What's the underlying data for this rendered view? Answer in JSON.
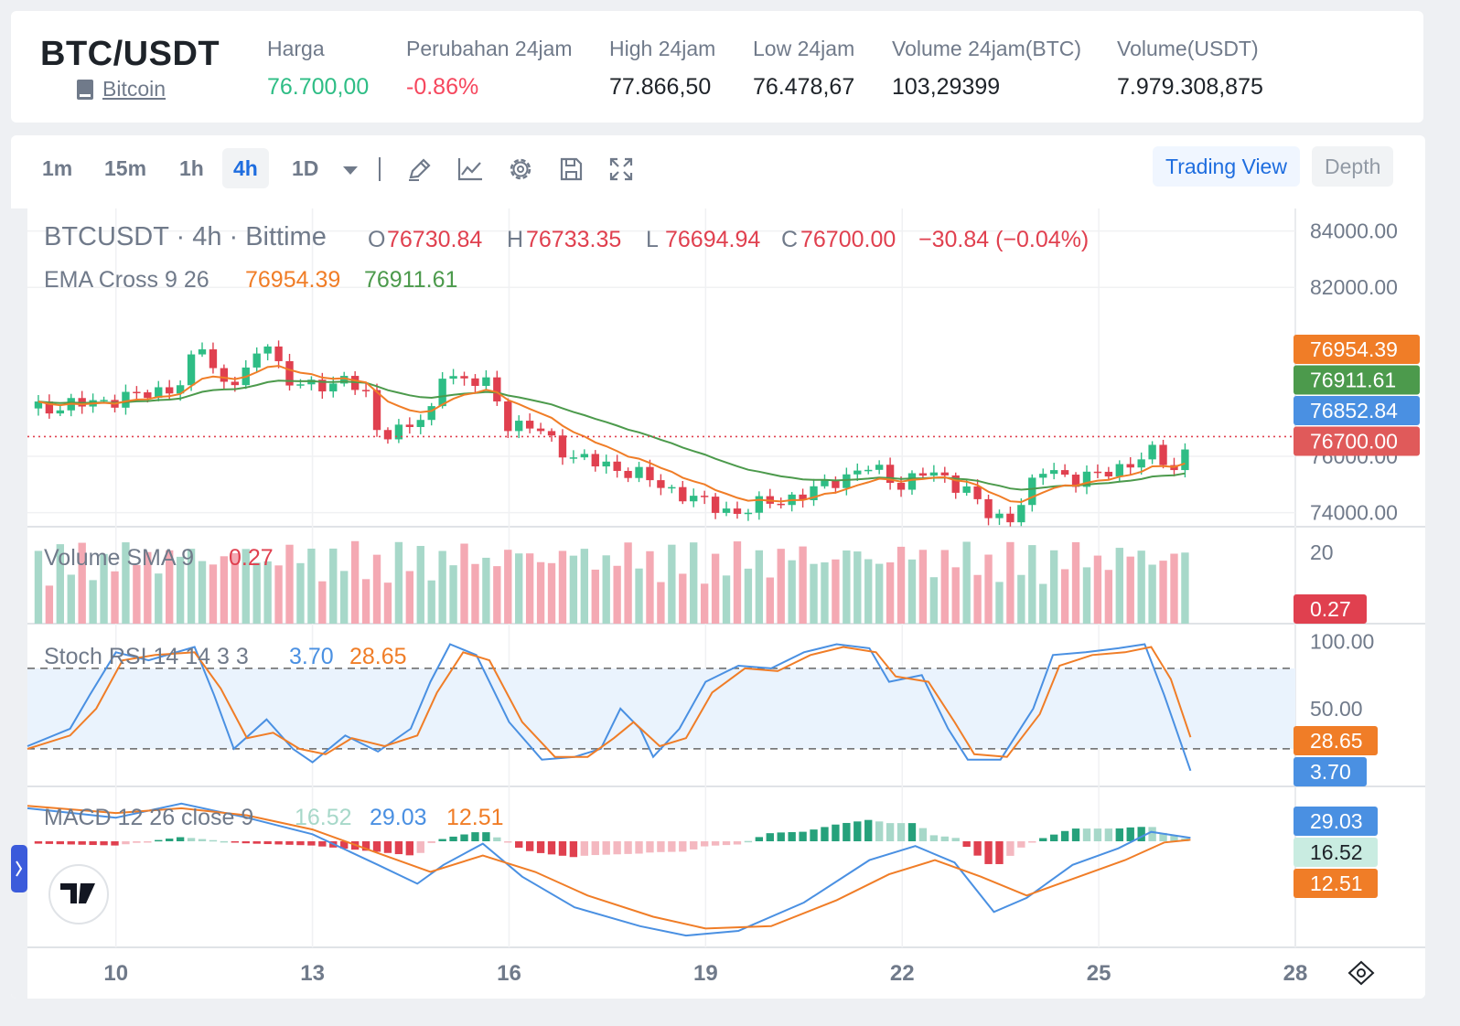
{
  "header": {
    "pair": "BTC/USDT",
    "coin_link": "Bitcoin",
    "stats": [
      {
        "label": "Harga",
        "value": "76.700,00",
        "tone": "green"
      },
      {
        "label": "Perubahan 24jam",
        "value": "-0.86%",
        "tone": "red"
      },
      {
        "label": "High 24jam",
        "value": "77.866,50",
        "tone": "normal"
      },
      {
        "label": "Low 24jam",
        "value": "76.478,67",
        "tone": "normal"
      },
      {
        "label": "Volume 24jam(BTC)",
        "value": "103,29399",
        "tone": "normal"
      },
      {
        "label": "Volume(USDT)",
        "value": "7.979.308,875",
        "tone": "normal"
      }
    ]
  },
  "toolbar": {
    "timeframes": [
      "1m",
      "15m",
      "1h",
      "4h",
      "1D"
    ],
    "active_timeframe": "4h",
    "views": [
      "Trading View",
      "Depth"
    ],
    "active_view": "Trading View"
  },
  "chart_data": {
    "type": "candlestick",
    "title": "BTCUSDT · 4h · Bittime",
    "ohlc": {
      "o_label": "O",
      "o": "76730.84",
      "h_label": "H",
      "h": "76733.35",
      "l_label": "L",
      "l": "76694.94",
      "c_label": "C",
      "c": "76700.00",
      "change": "−30.84 (−0.04%)"
    },
    "x_ticks": [
      "10",
      "13",
      "16",
      "19",
      "22",
      "25",
      "28"
    ],
    "x_tick_days": [
      10,
      13,
      16,
      19,
      22,
      25,
      28
    ],
    "x_range_days": [
      8.65,
      28.0
    ],
    "y_ticks": [
      "84000.00",
      "82000.00",
      "76000.00",
      "74000.00"
    ],
    "y_range": [
      73500,
      84800
    ],
    "last_price": 76700,
    "close_path": [
      {
        "day": 8.65,
        "close": 77700
      },
      {
        "day": 9.0,
        "close": 77750
      },
      {
        "day": 9.5,
        "close": 77850
      },
      {
        "day": 10.0,
        "close": 78050
      },
      {
        "day": 10.5,
        "close": 78200
      },
      {
        "day": 11.0,
        "close": 78600
      },
      {
        "day": 11.3,
        "close": 80000
      },
      {
        "day": 11.6,
        "close": 78600
      },
      {
        "day": 12.0,
        "close": 78900
      },
      {
        "day": 12.3,
        "close": 80200
      },
      {
        "day": 12.6,
        "close": 78700
      },
      {
        "day": 13.0,
        "close": 78400
      },
      {
        "day": 13.5,
        "close": 78800
      },
      {
        "day": 13.8,
        "close": 78200
      },
      {
        "day": 14.0,
        "close": 76800
      },
      {
        "day": 14.5,
        "close": 77100
      },
      {
        "day": 14.8,
        "close": 77400
      },
      {
        "day": 15.0,
        "close": 79200
      },
      {
        "day": 15.3,
        "close": 78600
      },
      {
        "day": 15.7,
        "close": 78600
      },
      {
        "day": 16.0,
        "close": 77100
      },
      {
        "day": 16.5,
        "close": 76900
      },
      {
        "day": 17.0,
        "close": 75900
      },
      {
        "day": 17.5,
        "close": 75700
      },
      {
        "day": 18.0,
        "close": 75300
      },
      {
        "day": 18.5,
        "close": 74800
      },
      {
        "day": 19.0,
        "close": 74300
      },
      {
        "day": 19.5,
        "close": 74000
      },
      {
        "day": 20.0,
        "close": 74400
      },
      {
        "day": 20.5,
        "close": 74600
      },
      {
        "day": 21.0,
        "close": 75200
      },
      {
        "day": 21.5,
        "close": 75600
      },
      {
        "day": 22.0,
        "close": 75000
      },
      {
        "day": 22.3,
        "close": 75400
      },
      {
        "day": 22.7,
        "close": 75200
      },
      {
        "day": 23.0,
        "close": 74800
      },
      {
        "day": 23.3,
        "close": 73900
      },
      {
        "day": 23.6,
        "close": 73700
      },
      {
        "day": 23.9,
        "close": 74700
      },
      {
        "day": 24.2,
        "close": 75600
      },
      {
        "day": 24.6,
        "close": 75200
      },
      {
        "day": 25.0,
        "close": 75300
      },
      {
        "day": 25.4,
        "close": 75700
      },
      {
        "day": 25.8,
        "close": 76100
      },
      {
        "day": 26.2,
        "close": 75500
      },
      {
        "day": 26.4,
        "close": 76700
      }
    ],
    "ema": {
      "label": "EMA Cross 9 26",
      "fast_value": "76954.39",
      "slow_value": "76911.61",
      "fast_color": "#f07d27",
      "slow_color": "#4c9a4c"
    },
    "price_tags": [
      {
        "value": "76954.39",
        "price": 76954.39,
        "color": "#f07d27"
      },
      {
        "value": "76911.61",
        "price": 76911.61,
        "color": "#4c9a4c"
      },
      {
        "value": "76852.84",
        "price": 76852.84,
        "color": "#4a90e2"
      },
      {
        "value": "76700.00",
        "price": 76700.0,
        "color": "#e05a5a"
      }
    ],
    "volume": {
      "label": "Volume SMA 9",
      "value": "0.27",
      "axis_tick": "20",
      "axis_range": [
        0,
        24
      ],
      "up_color": "#a7d8c9",
      "down_color": "#f4a9b3"
    },
    "stoch_rsi": {
      "label": "Stoch RSI 14 14 3 3",
      "k_value": "3.70",
      "d_value": "28.65",
      "y_ticks": [
        "100.00",
        "50.00"
      ],
      "y_range": [
        -8,
        112
      ],
      "band": [
        20,
        80
      ],
      "k_points": [
        {
          "day": 8.65,
          "v": 22
        },
        {
          "day": 9.3,
          "v": 35
        },
        {
          "day": 9.6,
          "v": 60
        },
        {
          "day": 10.0,
          "v": 92
        },
        {
          "day": 10.5,
          "v": 86
        },
        {
          "day": 11.2,
          "v": 96
        },
        {
          "day": 11.5,
          "v": 60
        },
        {
          "day": 11.8,
          "v": 20
        },
        {
          "day": 12.3,
          "v": 42
        },
        {
          "day": 12.7,
          "v": 20
        },
        {
          "day": 13.0,
          "v": 10
        },
        {
          "day": 13.5,
          "v": 30
        },
        {
          "day": 14.0,
          "v": 18
        },
        {
          "day": 14.5,
          "v": 35
        },
        {
          "day": 14.8,
          "v": 70
        },
        {
          "day": 15.1,
          "v": 98
        },
        {
          "day": 15.5,
          "v": 90
        },
        {
          "day": 16.0,
          "v": 40
        },
        {
          "day": 16.5,
          "v": 12
        },
        {
          "day": 17.0,
          "v": 14
        },
        {
          "day": 17.4,
          "v": 20
        },
        {
          "day": 17.7,
          "v": 50
        },
        {
          "day": 18.0,
          "v": 35
        },
        {
          "day": 18.2,
          "v": 14
        },
        {
          "day": 18.6,
          "v": 35
        },
        {
          "day": 19.0,
          "v": 70
        },
        {
          "day": 19.5,
          "v": 82
        },
        {
          "day": 20.0,
          "v": 80
        },
        {
          "day": 20.5,
          "v": 92
        },
        {
          "day": 21.0,
          "v": 98
        },
        {
          "day": 21.5,
          "v": 95
        },
        {
          "day": 21.8,
          "v": 70
        },
        {
          "day": 22.3,
          "v": 75
        },
        {
          "day": 22.7,
          "v": 35
        },
        {
          "day": 23.0,
          "v": 12
        },
        {
          "day": 23.5,
          "v": 12
        },
        {
          "day": 24.0,
          "v": 50
        },
        {
          "day": 24.3,
          "v": 90
        },
        {
          "day": 24.8,
          "v": 92
        },
        {
          "day": 25.3,
          "v": 95
        },
        {
          "day": 25.7,
          "v": 98
        },
        {
          "day": 26.0,
          "v": 60
        },
        {
          "day": 26.4,
          "v": 3.7
        }
      ],
      "d_points": [
        {
          "day": 8.65,
          "v": 20
        },
        {
          "day": 9.3,
          "v": 30
        },
        {
          "day": 9.7,
          "v": 50
        },
        {
          "day": 10.1,
          "v": 86
        },
        {
          "day": 10.6,
          "v": 90
        },
        {
          "day": 11.2,
          "v": 92
        },
        {
          "day": 11.6,
          "v": 65
        },
        {
          "day": 12.0,
          "v": 28
        },
        {
          "day": 12.4,
          "v": 32
        },
        {
          "day": 12.8,
          "v": 20
        },
        {
          "day": 13.2,
          "v": 16
        },
        {
          "day": 13.6,
          "v": 28
        },
        {
          "day": 14.1,
          "v": 22
        },
        {
          "day": 14.6,
          "v": 30
        },
        {
          "day": 14.9,
          "v": 62
        },
        {
          "day": 15.3,
          "v": 92
        },
        {
          "day": 15.7,
          "v": 86
        },
        {
          "day": 16.2,
          "v": 40
        },
        {
          "day": 16.7,
          "v": 14
        },
        {
          "day": 17.2,
          "v": 14
        },
        {
          "day": 17.6,
          "v": 28
        },
        {
          "day": 17.9,
          "v": 40
        },
        {
          "day": 18.3,
          "v": 22
        },
        {
          "day": 18.7,
          "v": 28
        },
        {
          "day": 19.1,
          "v": 62
        },
        {
          "day": 19.6,
          "v": 80
        },
        {
          "day": 20.1,
          "v": 78
        },
        {
          "day": 20.6,
          "v": 90
        },
        {
          "day": 21.1,
          "v": 96
        },
        {
          "day": 21.6,
          "v": 92
        },
        {
          "day": 21.9,
          "v": 74
        },
        {
          "day": 22.4,
          "v": 70
        },
        {
          "day": 22.8,
          "v": 40
        },
        {
          "day": 23.1,
          "v": 16
        },
        {
          "day": 23.6,
          "v": 14
        },
        {
          "day": 24.1,
          "v": 46
        },
        {
          "day": 24.4,
          "v": 82
        },
        {
          "day": 24.9,
          "v": 90
        },
        {
          "day": 25.4,
          "v": 92
        },
        {
          "day": 25.8,
          "v": 96
        },
        {
          "day": 26.1,
          "v": 72
        },
        {
          "day": 26.4,
          "v": 28.65
        }
      ]
    },
    "macd": {
      "label": "MACD 12 26 close 9",
      "hist_value": "16.52",
      "macd_value": "29.03",
      "signal_value": "12.51",
      "y_range": [
        -900,
        450
      ],
      "macd_points": [
        {
          "day": 8.65,
          "v": 280
        },
        {
          "day": 10.0,
          "v": 200
        },
        {
          "day": 11.0,
          "v": 320
        },
        {
          "day": 12.0,
          "v": 200
        },
        {
          "day": 13.0,
          "v": 60
        },
        {
          "day": 14.0,
          "v": -200
        },
        {
          "day": 14.6,
          "v": -360
        },
        {
          "day": 15.0,
          "v": -200
        },
        {
          "day": 15.6,
          "v": -20
        },
        {
          "day": 16.2,
          "v": -300
        },
        {
          "day": 17.0,
          "v": -560
        },
        {
          "day": 18.0,
          "v": -720
        },
        {
          "day": 18.7,
          "v": -800
        },
        {
          "day": 19.5,
          "v": -760
        },
        {
          "day": 20.5,
          "v": -520
        },
        {
          "day": 21.5,
          "v": -160
        },
        {
          "day": 22.2,
          "v": -40
        },
        {
          "day": 22.8,
          "v": -180
        },
        {
          "day": 23.4,
          "v": -600
        },
        {
          "day": 23.9,
          "v": -480
        },
        {
          "day": 24.6,
          "v": -200
        },
        {
          "day": 25.3,
          "v": -60
        },
        {
          "day": 25.8,
          "v": 80
        },
        {
          "day": 26.4,
          "v": 29
        }
      ],
      "signal_points": [
        {
          "day": 8.65,
          "v": 300
        },
        {
          "day": 10.0,
          "v": 240
        },
        {
          "day": 11.0,
          "v": 280
        },
        {
          "day": 12.0,
          "v": 220
        },
        {
          "day": 13.0,
          "v": 100
        },
        {
          "day": 14.0,
          "v": -100
        },
        {
          "day": 14.8,
          "v": -260
        },
        {
          "day": 15.6,
          "v": -120
        },
        {
          "day": 16.4,
          "v": -260
        },
        {
          "day": 17.2,
          "v": -460
        },
        {
          "day": 18.2,
          "v": -640
        },
        {
          "day": 19.0,
          "v": -740
        },
        {
          "day": 20.0,
          "v": -720
        },
        {
          "day": 21.0,
          "v": -500
        },
        {
          "day": 21.8,
          "v": -280
        },
        {
          "day": 22.5,
          "v": -160
        },
        {
          "day": 23.2,
          "v": -300
        },
        {
          "day": 23.9,
          "v": -460
        },
        {
          "day": 24.6,
          "v": -320
        },
        {
          "day": 25.4,
          "v": -160
        },
        {
          "day": 26.0,
          "v": -10
        },
        {
          "day": 26.4,
          "v": 12.5
        }
      ],
      "macd_color": "#4a90e2",
      "signal_color": "#f07d27",
      "hist_label_color": "#a7d8c9"
    }
  }
}
